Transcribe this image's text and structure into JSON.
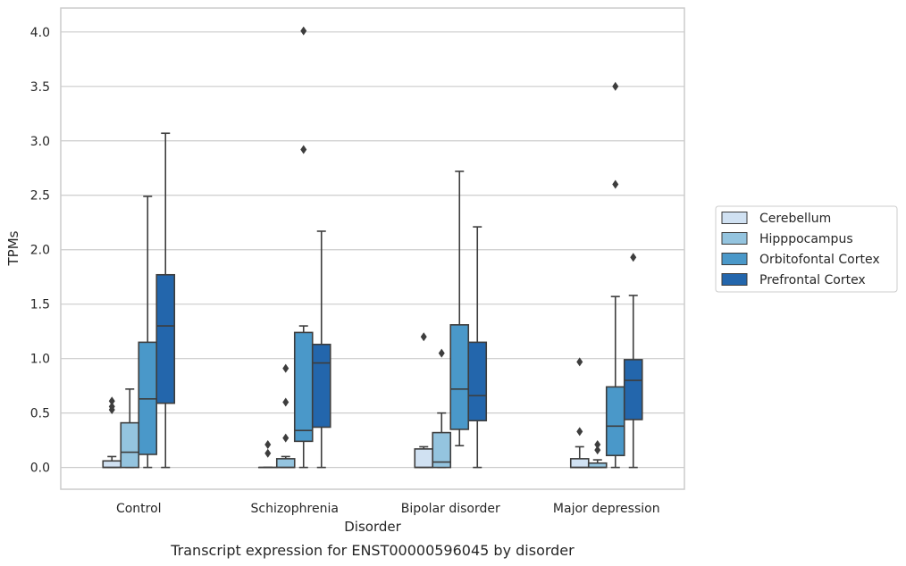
{
  "caption": "Transcript expression for ENST00000596045 by disorder",
  "chart_data": {
    "type": "box",
    "xlabel": "Disorder",
    "ylabel": "TPMs",
    "ylim": [
      -0.2,
      4.22
    ],
    "yticks": [
      "0.0",
      "0.5",
      "1.0",
      "1.5",
      "2.0",
      "2.5",
      "3.0",
      "3.5",
      "4.0"
    ],
    "grid": "horizontal",
    "legend_placement": "center-right",
    "categories": [
      "Control",
      "Schizophrenia",
      "Bipolar disorder",
      "Major depression"
    ],
    "series": [
      {
        "name": "Cerebellum",
        "color": "#d0e1f2",
        "boxes": [
          {
            "whislo": 0.0,
            "q1": 0.0,
            "med": 0.0,
            "q3": 0.06,
            "whishi": 0.1,
            "fliers": [
              0.53,
              0.56,
              0.61
            ]
          },
          {
            "whislo": 0.0,
            "q1": 0.0,
            "med": 0.0,
            "q3": 0.0,
            "whishi": 0.0,
            "fliers": [
              0.13,
              0.21
            ]
          },
          {
            "whislo": 0.0,
            "q1": 0.0,
            "med": 0.0,
            "q3": 0.17,
            "whishi": 0.19,
            "fliers": [
              1.2
            ]
          },
          {
            "whislo": 0.0,
            "q1": 0.0,
            "med": 0.0,
            "q3": 0.08,
            "whishi": 0.19,
            "fliers": [
              0.33,
              0.97
            ]
          }
        ]
      },
      {
        "name": "Hipppocampus",
        "color": "#94c4df",
        "boxes": [
          {
            "whislo": 0.0,
            "q1": 0.0,
            "med": 0.14,
            "q3": 0.41,
            "whishi": 0.72,
            "fliers": []
          },
          {
            "whislo": 0.0,
            "q1": 0.0,
            "med": 0.0,
            "q3": 0.08,
            "whishi": 0.1,
            "fliers": [
              0.27,
              0.6,
              0.91
            ]
          },
          {
            "whislo": 0.0,
            "q1": 0.0,
            "med": 0.05,
            "q3": 0.32,
            "whishi": 0.5,
            "fliers": [
              1.05
            ]
          },
          {
            "whislo": 0.0,
            "q1": 0.0,
            "med": 0.0,
            "q3": 0.04,
            "whishi": 0.07,
            "fliers": [
              0.16,
              0.21
            ]
          }
        ]
      },
      {
        "name": "Orbitofontal Cortex",
        "color": "#4a98c9",
        "boxes": [
          {
            "whislo": 0.0,
            "q1": 0.12,
            "med": 0.63,
            "q3": 1.15,
            "whishi": 2.49,
            "fliers": []
          },
          {
            "whislo": 0.0,
            "q1": 0.24,
            "med": 0.34,
            "q3": 1.24,
            "whishi": 1.3,
            "fliers": [
              2.92,
              4.01
            ]
          },
          {
            "whislo": 0.2,
            "q1": 0.35,
            "med": 0.72,
            "q3": 1.31,
            "whishi": 2.72,
            "fliers": []
          },
          {
            "whislo": 0.0,
            "q1": 0.11,
            "med": 0.38,
            "q3": 0.74,
            "whishi": 1.57,
            "fliers": [
              2.6,
              3.5
            ]
          }
        ]
      },
      {
        "name": "Prefrontal Cortex",
        "color": "#2366ac",
        "boxes": [
          {
            "whislo": 0.0,
            "q1": 0.59,
            "med": 1.3,
            "q3": 1.77,
            "whishi": 3.07,
            "fliers": []
          },
          {
            "whislo": 0.0,
            "q1": 0.37,
            "med": 0.96,
            "q3": 1.13,
            "whishi": 2.17,
            "fliers": []
          },
          {
            "whislo": 0.0,
            "q1": 0.43,
            "med": 0.66,
            "q3": 1.15,
            "whishi": 2.21,
            "fliers": []
          },
          {
            "whislo": 0.0,
            "q1": 0.44,
            "med": 0.8,
            "q3": 0.99,
            "whishi": 1.58,
            "fliers": [
              1.93
            ]
          }
        ]
      }
    ]
  }
}
